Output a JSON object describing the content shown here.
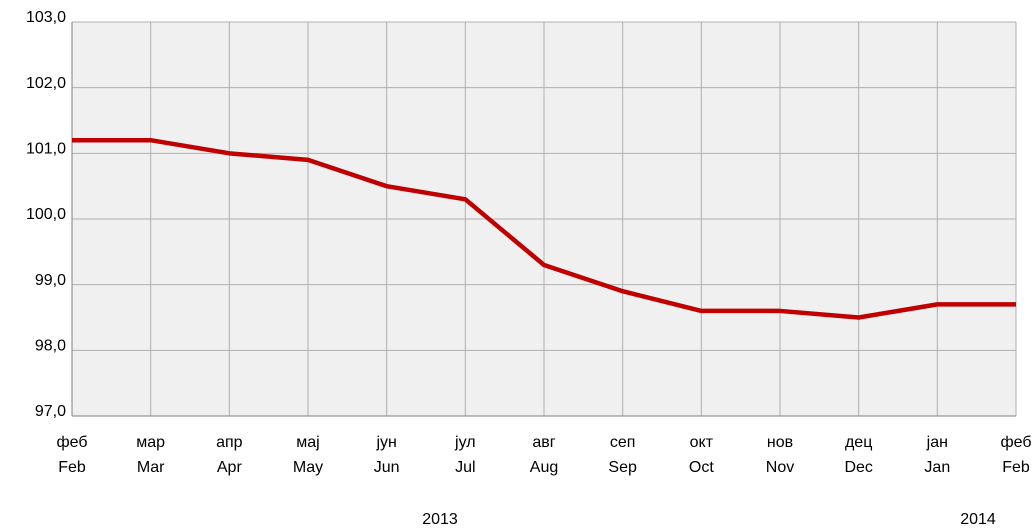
{
  "chart_data": {
    "type": "line",
    "categories": [
      "Feb",
      "Mar",
      "Apr",
      "May",
      "Jun",
      "Jul",
      "Aug",
      "Sep",
      "Oct",
      "Nov",
      "Dec",
      "Jan",
      "Feb"
    ],
    "categories_sr": [
      "феб",
      "мар",
      "апр",
      "мај",
      "јун",
      "јул",
      "авг",
      "сеп",
      "окт",
      "нов",
      "дец",
      "јан",
      "феб"
    ],
    "years": [
      "2013",
      "2014"
    ],
    "series": [
      {
        "color": "#c00000",
        "values": [
          101.2,
          101.2,
          101.0,
          100.9,
          100.5,
          100.3,
          99.3,
          98.9,
          98.6,
          98.6,
          98.5,
          98.7,
          98.7
        ]
      }
    ],
    "ylim": [
      97,
      103
    ],
    "yticks": [
      {
        "value": 97,
        "label": "97,0"
      },
      {
        "value": 98,
        "label": "98,0"
      },
      {
        "value": 99,
        "label": "99,0"
      },
      {
        "value": 100,
        "label": "100,0"
      },
      {
        "value": 101,
        "label": "101,0"
      },
      {
        "value": 102,
        "label": "102,0"
      },
      {
        "value": 103,
        "label": "103,0"
      }
    ],
    "grid": true
  }
}
